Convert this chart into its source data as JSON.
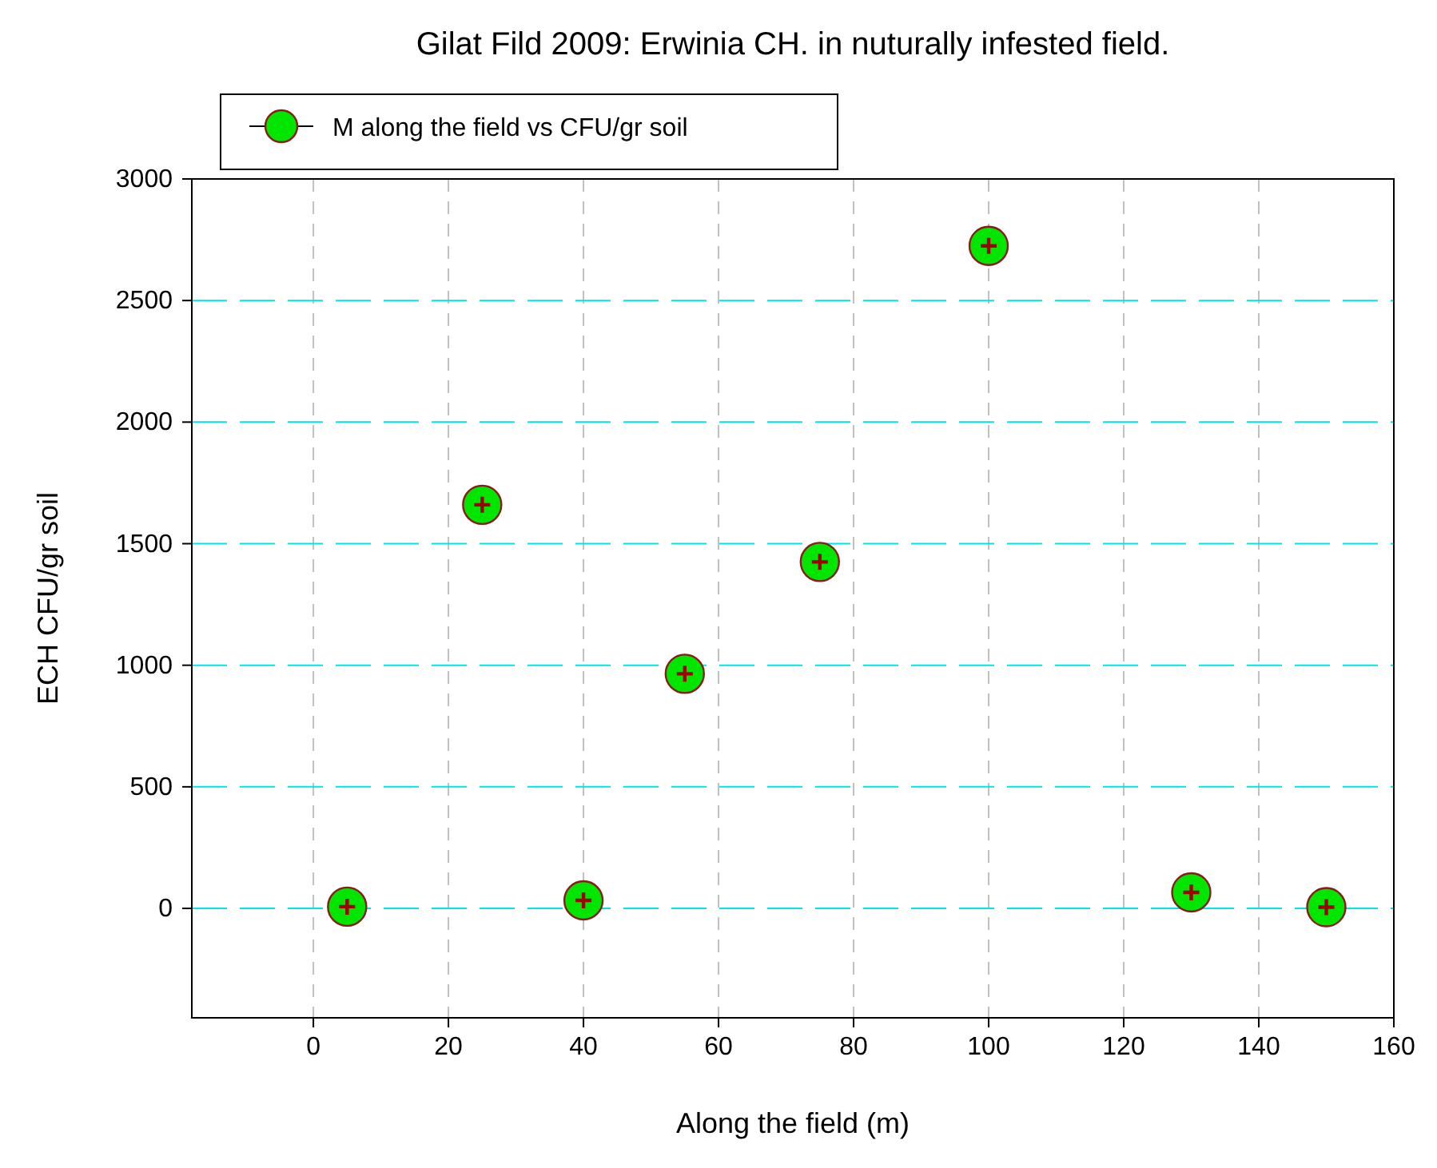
{
  "chart_data": {
    "type": "scatter",
    "title": "Gilat Fild 2009: Erwinia CH. in nuturally infested field.",
    "xlabel": "Along the field (m)",
    "ylabel": "ECH CFU/gr soil",
    "x": [
      5,
      25,
      40,
      55,
      75,
      100,
      130,
      150
    ],
    "series": [
      {
        "name": "M along the field vs CFU/gr soil",
        "color": "#00e600",
        "values": [
          7,
          1660,
          33,
          965,
          1425,
          2725,
          66,
          5
        ]
      }
    ],
    "xlim": [
      -18,
      160
    ],
    "xticks": [
      0,
      20,
      40,
      60,
      80,
      100,
      120,
      140,
      160
    ],
    "ylim": [
      -450,
      3000
    ],
    "yticks": [
      0,
      500,
      1000,
      1500,
      2000,
      2500,
      3000
    ],
    "grid": true,
    "legend": "top left",
    "marker": "circle"
  }
}
